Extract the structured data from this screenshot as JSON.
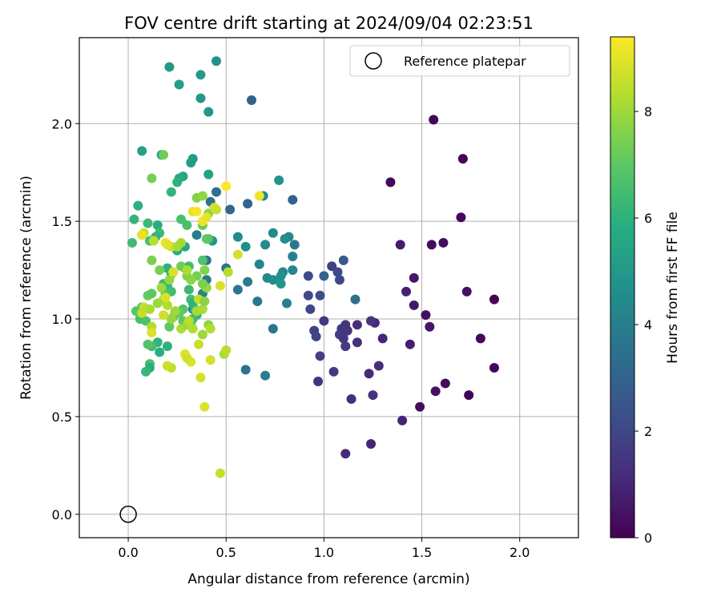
{
  "chart_data": {
    "type": "scatter",
    "title": "FOV centre drift starting at 2024/09/04 02:23:51",
    "xlabel": "Angular distance from reference (arcmin)",
    "ylabel": "Rotation from reference (arcmin)",
    "xlim": [
      -0.25,
      2.3
    ],
    "ylim": [
      -0.12,
      2.44
    ],
    "xticks": [
      0.0,
      0.5,
      1.0,
      1.5,
      2.0
    ],
    "yticks": [
      0.0,
      0.5,
      1.0,
      1.5,
      2.0
    ],
    "xtick_labels": [
      "0.0",
      "0.5",
      "1.0",
      "1.5",
      "2.0"
    ],
    "ytick_labels": [
      "0.0",
      "0.5",
      "1.0",
      "1.5",
      "2.0"
    ],
    "grid": true,
    "legend": {
      "placement": "top-right",
      "entries": [
        "Reference platepar"
      ]
    },
    "reference_point": {
      "x": 0.0,
      "y": 0.0
    },
    "colorbar": {
      "label": "Hours from first FF file",
      "colormap": "viridis",
      "range": [
        0,
        9.4
      ],
      "ticks": [
        0,
        2,
        4,
        6,
        8
      ],
      "tick_labels": [
        "0",
        "2",
        "4",
        "6",
        "8"
      ]
    },
    "points_xyc": [
      [
        1.56,
        2.02,
        0.1
      ],
      [
        1.71,
        1.82,
        0.1
      ],
      [
        1.34,
        1.7,
        0.2
      ],
      [
        1.7,
        1.52,
        0.2
      ],
      [
        1.61,
        1.39,
        0.3
      ],
      [
        1.55,
        1.38,
        0.3
      ],
      [
        1.73,
        1.14,
        0.4
      ],
      [
        1.87,
        1.1,
        0.1
      ],
      [
        1.8,
        0.9,
        0.2
      ],
      [
        1.87,
        0.75,
        0.1
      ],
      [
        1.74,
        0.61,
        0.1
      ],
      [
        1.62,
        0.67,
        0.3
      ],
      [
        1.57,
        0.63,
        0.4
      ],
      [
        1.49,
        0.55,
        0.3
      ],
      [
        1.4,
        0.48,
        0.9
      ],
      [
        1.24,
        0.36,
        1.0
      ],
      [
        1.11,
        0.31,
        1.1
      ],
      [
        1.14,
        0.59,
        1.2
      ],
      [
        1.25,
        0.61,
        1.3
      ],
      [
        1.28,
        0.76,
        1.2
      ],
      [
        1.23,
        0.72,
        1.1
      ],
      [
        1.39,
        1.38,
        0.7
      ],
      [
        1.42,
        1.14,
        0.8
      ],
      [
        1.46,
        1.21,
        0.6
      ],
      [
        1.46,
        1.07,
        0.6
      ],
      [
        1.52,
        1.02,
        0.4
      ],
      [
        1.54,
        0.96,
        0.5
      ],
      [
        1.44,
        0.87,
        0.8
      ],
      [
        1.3,
        0.9,
        1.0
      ],
      [
        1.26,
        0.98,
        1.1
      ],
      [
        1.24,
        0.99,
        1.4
      ],
      [
        1.17,
        0.97,
        1.2
      ],
      [
        1.17,
        0.88,
        1.3
      ],
      [
        1.11,
        0.86,
        1.6
      ],
      [
        1.11,
        0.97,
        1.5
      ],
      [
        1.09,
        0.95,
        1.5
      ],
      [
        1.08,
        0.92,
        1.7
      ],
      [
        1.1,
        0.9,
        1.5
      ],
      [
        1.12,
        0.94,
        1.4
      ],
      [
        1.0,
        0.99,
        1.6
      ],
      [
        0.95,
        0.94,
        1.8
      ],
      [
        0.98,
        0.81,
        1.8
      ],
      [
        0.96,
        0.91,
        1.9
      ],
      [
        1.05,
        0.73,
        1.6
      ],
      [
        0.97,
        0.68,
        1.4
      ],
      [
        0.93,
        1.05,
        2.0
      ],
      [
        0.92,
        1.12,
        2.1
      ],
      [
        0.92,
        1.22,
        2.1
      ],
      [
        0.98,
        1.12,
        2.2
      ],
      [
        1.04,
        1.27,
        1.8
      ],
      [
        1.08,
        1.2,
        2.0
      ],
      [
        1.07,
        1.24,
        2.1
      ],
      [
        1.1,
        1.3,
        2.6
      ],
      [
        1.0,
        1.22,
        2.9
      ],
      [
        1.16,
        1.1,
        3.4
      ],
      [
        0.84,
        1.61,
        2.9
      ],
      [
        0.63,
        2.12,
        2.9
      ],
      [
        0.61,
        1.59,
        3.0
      ],
      [
        0.52,
        1.56,
        3.2
      ],
      [
        0.45,
        1.65,
        3.4
      ],
      [
        0.42,
        1.6,
        3.5
      ],
      [
        0.4,
        1.2,
        3.8
      ],
      [
        0.4,
        1.3,
        3.6
      ],
      [
        0.35,
        1.43,
        3.9
      ],
      [
        0.33,
        1.05,
        4.0
      ],
      [
        0.38,
        1.13,
        4.2
      ],
      [
        0.5,
        1.26,
        3.6
      ],
      [
        0.56,
        1.15,
        3.7
      ],
      [
        0.61,
        1.19,
        3.9
      ],
      [
        0.66,
        1.09,
        3.8
      ],
      [
        0.67,
        1.28,
        4.2
      ],
      [
        0.6,
        0.74,
        3.6
      ],
      [
        0.7,
        0.71,
        4.0
      ],
      [
        0.74,
        0.95,
        3.6
      ],
      [
        0.71,
        1.21,
        4.3
      ],
      [
        0.74,
        1.2,
        4.6
      ],
      [
        0.79,
        1.24,
        4.4
      ],
      [
        0.78,
        1.18,
        4.9
      ],
      [
        0.78,
        1.22,
        4.7
      ],
      [
        0.84,
        1.25,
        4.3
      ],
      [
        0.81,
        1.08,
        4.0
      ],
      [
        0.84,
        1.32,
        4.1
      ],
      [
        0.85,
        1.38,
        3.8
      ],
      [
        0.82,
        1.42,
        4.3
      ],
      [
        0.8,
        1.41,
        4.6
      ],
      [
        0.74,
        1.44,
        4.4
      ],
      [
        0.7,
        1.38,
        4.5
      ],
      [
        0.6,
        1.37,
        4.6
      ],
      [
        0.56,
        1.42,
        4.5
      ],
      [
        0.43,
        1.4,
        4.9
      ],
      [
        0.69,
        1.63,
        4.4
      ],
      [
        0.77,
        1.71,
        4.8
      ],
      [
        0.45,
        2.32,
        4.8
      ],
      [
        0.21,
        2.29,
        5.0
      ],
      [
        0.37,
        2.25,
        5.1
      ],
      [
        0.26,
        2.2,
        5.2
      ],
      [
        0.37,
        2.13,
        5.0
      ],
      [
        0.41,
        2.06,
        5.0
      ],
      [
        0.33,
        1.82,
        5.1
      ],
      [
        0.32,
        1.8,
        5.2
      ],
      [
        0.17,
        1.84,
        5.4
      ],
      [
        0.07,
        1.86,
        5.3
      ],
      [
        0.41,
        1.74,
        5.4
      ],
      [
        0.28,
        1.73,
        5.5
      ],
      [
        0.26,
        1.72,
        5.7
      ],
      [
        0.25,
        1.7,
        6.0
      ],
      [
        0.22,
        1.65,
        6.1
      ],
      [
        0.05,
        1.58,
        6.0
      ],
      [
        0.03,
        1.51,
        6.2
      ],
      [
        0.1,
        1.49,
        6.3
      ],
      [
        0.15,
        1.48,
        5.9
      ],
      [
        0.16,
        1.44,
        6.4
      ],
      [
        0.14,
        1.42,
        6.1
      ],
      [
        0.11,
        1.4,
        6.5
      ],
      [
        0.07,
        1.43,
        6.3
      ],
      [
        0.02,
        1.39,
        6.4
      ],
      [
        0.27,
        1.51,
        6.6
      ],
      [
        0.3,
        1.48,
        6.6
      ],
      [
        0.29,
        1.37,
        5.6
      ],
      [
        0.25,
        1.35,
        5.8
      ],
      [
        0.41,
        1.41,
        6.6
      ],
      [
        0.38,
        1.3,
        6.7
      ],
      [
        0.31,
        1.27,
        6.4
      ],
      [
        0.29,
        1.26,
        6.2
      ],
      [
        0.2,
        1.26,
        6.0
      ],
      [
        0.22,
        1.23,
        6.1
      ],
      [
        0.18,
        1.18,
        6.3
      ],
      [
        0.2,
        1.17,
        6.2
      ],
      [
        0.22,
        1.14,
        6.5
      ],
      [
        0.19,
        1.13,
        6.7
      ],
      [
        0.31,
        1.15,
        6.3
      ],
      [
        0.32,
        1.1,
        6.5
      ],
      [
        0.33,
        1.08,
        6.0
      ],
      [
        0.34,
        1.05,
        6.2
      ],
      [
        0.35,
        1.02,
        6.1
      ],
      [
        0.33,
        1.0,
        6.4
      ],
      [
        0.32,
        0.97,
        6.6
      ],
      [
        0.28,
        1.05,
        6.8
      ],
      [
        0.28,
        0.99,
        7.0
      ],
      [
        0.26,
        1.03,
        7.1
      ],
      [
        0.24,
        1.04,
        6.9
      ],
      [
        0.23,
        1.01,
        7.1
      ],
      [
        0.21,
        0.96,
        7.0
      ],
      [
        0.2,
        0.86,
        6.0
      ],
      [
        0.16,
        0.83,
        5.9
      ],
      [
        0.15,
        0.88,
        6.1
      ],
      [
        0.12,
        0.86,
        6.5
      ],
      [
        0.1,
        0.87,
        6.8
      ],
      [
        0.11,
        0.77,
        6.6
      ],
      [
        0.11,
        0.75,
        5.8
      ],
      [
        0.09,
        0.73,
        6.2
      ],
      [
        0.09,
        0.99,
        6.7
      ],
      [
        0.06,
        1.0,
        6.6
      ],
      [
        0.04,
        1.04,
        6.9
      ],
      [
        0.07,
        1.06,
        6.8
      ],
      [
        0.1,
        1.12,
        7.2
      ],
      [
        0.12,
        1.13,
        7.0
      ],
      [
        0.16,
        1.25,
        7.4
      ],
      [
        0.12,
        1.3,
        7.5
      ],
      [
        0.12,
        1.72,
        7.4
      ],
      [
        0.18,
        1.84,
        7.3
      ],
      [
        0.35,
        1.62,
        7.6
      ],
      [
        0.38,
        1.63,
        7.8
      ],
      [
        0.41,
        1.54,
        7.7
      ],
      [
        0.4,
        1.41,
        7.0
      ],
      [
        0.38,
        1.48,
        7.2
      ],
      [
        0.39,
        1.25,
        7.6
      ],
      [
        0.35,
        1.22,
        7.4
      ],
      [
        0.32,
        1.2,
        7.8
      ],
      [
        0.3,
        1.22,
        7.6
      ],
      [
        0.27,
        1.27,
        7.3
      ],
      [
        0.23,
        1.24,
        7.7
      ],
      [
        0.21,
        1.2,
        7.9
      ],
      [
        0.17,
        1.16,
        8.0
      ],
      [
        0.18,
        1.1,
        8.1
      ],
      [
        0.2,
        1.07,
        8.3
      ],
      [
        0.24,
        1.04,
        8.0
      ],
      [
        0.22,
        1.0,
        7.9
      ],
      [
        0.27,
        0.95,
        8.2
      ],
      [
        0.3,
        0.97,
        8.0
      ],
      [
        0.31,
        0.99,
        8.4
      ],
      [
        0.33,
        0.95,
        8.3
      ],
      [
        0.35,
        1.04,
        8.1
      ],
      [
        0.36,
        1.1,
        8.5
      ],
      [
        0.38,
        1.05,
        8.2
      ],
      [
        0.39,
        1.09,
        7.7
      ],
      [
        0.4,
        1.16,
        7.9
      ],
      [
        0.38,
        1.18,
        7.5
      ],
      [
        0.41,
        0.97,
        7.8
      ],
      [
        0.38,
        0.92,
        8.0
      ],
      [
        0.42,
        0.95,
        8.3
      ],
      [
        0.36,
        0.87,
        8.6
      ],
      [
        0.42,
        0.79,
        8.8
      ],
      [
        0.32,
        0.78,
        8.9
      ],
      [
        0.29,
        0.82,
        9.0
      ],
      [
        0.3,
        0.8,
        8.7
      ],
      [
        0.22,
        0.75,
        8.4
      ],
      [
        0.2,
        0.76,
        8.6
      ],
      [
        0.12,
        0.96,
        8.3
      ],
      [
        0.12,
        0.93,
        8.9
      ],
      [
        0.07,
        1.03,
        8.6
      ],
      [
        0.08,
        1.06,
        8.5
      ],
      [
        0.11,
        1.05,
        8.2
      ],
      [
        0.15,
        1.08,
        8.0
      ],
      [
        0.18,
        1.02,
        8.7
      ],
      [
        0.19,
        1.11,
        8.9
      ],
      [
        0.13,
        1.4,
        8.4
      ],
      [
        0.08,
        1.44,
        8.6
      ],
      [
        0.07,
        1.43,
        9.1
      ],
      [
        0.22,
        1.37,
        8.8
      ],
      [
        0.19,
        1.39,
        9.2
      ],
      [
        0.2,
        1.38,
        9.0
      ],
      [
        0.23,
        1.24,
        8.9
      ],
      [
        0.25,
        1.37,
        8.2
      ],
      [
        0.27,
        1.39,
        8.1
      ],
      [
        0.3,
        1.25,
        8.2
      ],
      [
        0.33,
        1.55,
        9.0
      ],
      [
        0.35,
        1.55,
        9.3
      ],
      [
        0.38,
        1.5,
        9.2
      ],
      [
        0.4,
        1.52,
        9.1
      ],
      [
        0.44,
        1.57,
        8.8
      ],
      [
        0.45,
        1.56,
        8.6
      ],
      [
        0.5,
        1.68,
        9.4
      ],
      [
        0.67,
        1.63,
        9.2
      ],
      [
        0.56,
        1.33,
        8.8
      ],
      [
        0.51,
        1.24,
        8.3
      ],
      [
        0.47,
        1.17,
        8.9
      ],
      [
        0.49,
        0.82,
        8.2
      ],
      [
        0.5,
        0.84,
        8.4
      ],
      [
        0.37,
        0.7,
        8.8
      ],
      [
        0.39,
        0.55,
        8.9
      ],
      [
        0.47,
        0.21,
        8.6
      ]
    ]
  }
}
